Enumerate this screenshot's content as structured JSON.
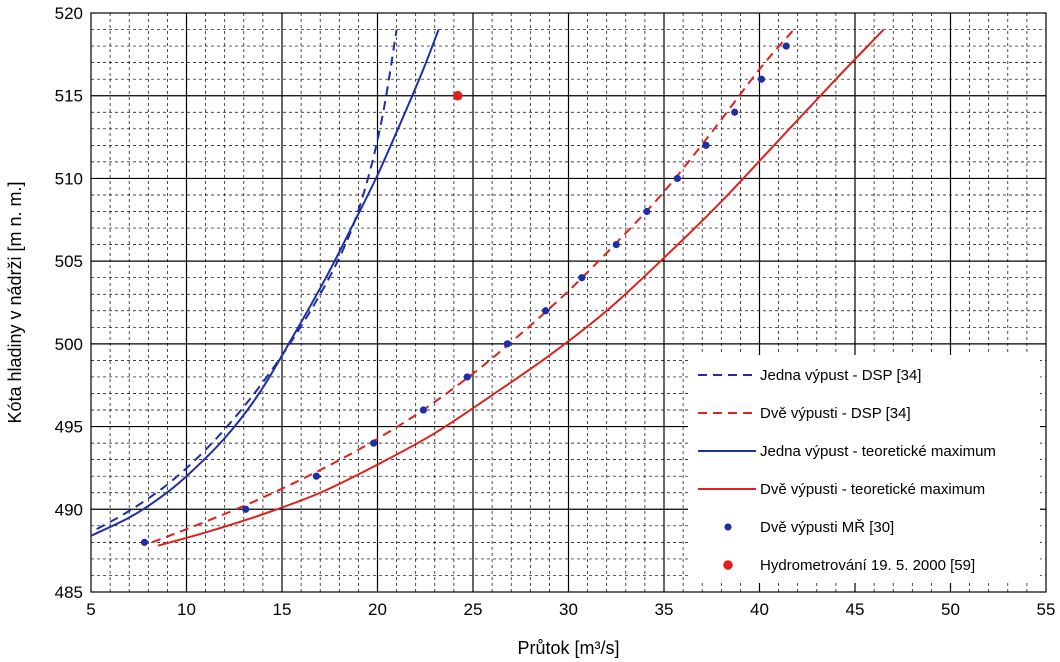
{
  "chart_data": {
    "type": "line",
    "xlabel": "Průtok [m³/s]",
    "ylabel": "Kóta hladiny v nádrži [m n. m.]",
    "xlim": [
      5,
      55
    ],
    "ylim": [
      485,
      520
    ],
    "x_ticks": [
      "5",
      "10",
      "15",
      "20",
      "25",
      "30",
      "35",
      "40",
      "45",
      "50",
      "55"
    ],
    "y_ticks": [
      "485",
      "490",
      "495",
      "500",
      "505",
      "510",
      "515",
      "520"
    ],
    "grid": true,
    "legend_position": "bottom-right",
    "series": [
      {
        "name": "Jedna výpust - DSP [34]",
        "style": "dashed-line",
        "color": "#1c2fa8",
        "points": [
          [
            5.3,
            488.8
          ],
          [
            7,
            489.9
          ],
          [
            9,
            491.5
          ],
          [
            11,
            493.6
          ],
          [
            13,
            496.2
          ],
          [
            15,
            499.3
          ],
          [
            17,
            503.0
          ],
          [
            18.5,
            506.5
          ],
          [
            19.5,
            510.0
          ],
          [
            20.3,
            514.0
          ],
          [
            21.0,
            519.0
          ]
        ]
      },
      {
        "name": "Dvě výpusti - DSP [34]",
        "style": "dashed-line",
        "color": "#e0201b",
        "points": [
          [
            8.2,
            488.0
          ],
          [
            10,
            488.8
          ],
          [
            13,
            490.2
          ],
          [
            16,
            491.8
          ],
          [
            19,
            493.6
          ],
          [
            22,
            495.7
          ],
          [
            25,
            498.2
          ],
          [
            27.5,
            500.6
          ],
          [
            30,
            503.2
          ],
          [
            32.5,
            506.1
          ],
          [
            35,
            509.2
          ],
          [
            37.5,
            512.8
          ],
          [
            40,
            516.6
          ],
          [
            41.8,
            519.0
          ]
        ]
      },
      {
        "name": "Jedna výpust - teoretické maximum",
        "style": "solid-line",
        "color": "#1c2fa8",
        "points": [
          [
            5,
            488.4
          ],
          [
            7,
            489.5
          ],
          [
            8.5,
            490.6
          ],
          [
            10,
            492.0
          ],
          [
            12,
            494.3
          ],
          [
            13.8,
            497.0
          ],
          [
            15.5,
            500.3
          ],
          [
            17.3,
            504.0
          ],
          [
            18.8,
            507.4
          ],
          [
            20,
            510.2
          ],
          [
            21.3,
            513.6
          ],
          [
            22.4,
            516.6
          ],
          [
            23.2,
            519.0
          ]
        ]
      },
      {
        "name": "Dvě výpusti - teoretické maximum",
        "style": "solid-line",
        "color": "#e0201b",
        "points": [
          [
            8.5,
            487.8
          ],
          [
            11,
            488.6
          ],
          [
            14,
            489.7
          ],
          [
            17,
            491.0
          ],
          [
            20,
            492.7
          ],
          [
            23,
            494.6
          ],
          [
            26,
            496.9
          ],
          [
            29,
            499.3
          ],
          [
            32,
            502.0
          ],
          [
            35,
            505.2
          ],
          [
            38,
            508.6
          ],
          [
            41,
            512.3
          ],
          [
            44,
            516.0
          ],
          [
            46.5,
            519.0
          ]
        ]
      },
      {
        "name": "Dvě výpusti MŘ [30]",
        "style": "markers",
        "color": "#1c2fa8",
        "points": [
          [
            7.8,
            488
          ],
          [
            13.1,
            490
          ],
          [
            16.8,
            492
          ],
          [
            19.8,
            494
          ],
          [
            22.4,
            496
          ],
          [
            24.7,
            498
          ],
          [
            26.8,
            500
          ],
          [
            28.8,
            502
          ],
          [
            30.7,
            504
          ],
          [
            32.5,
            506
          ],
          [
            34.1,
            508
          ],
          [
            35.7,
            510
          ],
          [
            37.2,
            512
          ],
          [
            38.7,
            514
          ],
          [
            40.1,
            516
          ],
          [
            41.4,
            518
          ]
        ]
      },
      {
        "name": "Hydrometrování 19. 5. 2000 [59]",
        "style": "markers",
        "color": "#e0201b",
        "points": [
          [
            24.2,
            515
          ]
        ]
      }
    ]
  }
}
